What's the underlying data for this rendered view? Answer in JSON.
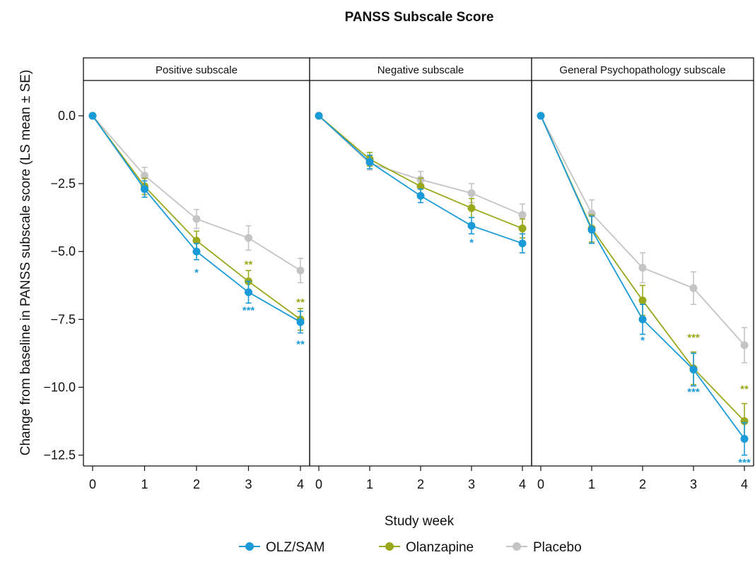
{
  "chart_data": {
    "type": "line",
    "title": "PANSS Subscale Score",
    "xlabel": "Study week",
    "ylabel": "Change from baseline in PANSS subscale score (LS mean ±  SE)",
    "x": [
      0,
      1,
      2,
      3,
      4
    ],
    "x_tick_labels": [
      "0",
      "1",
      "2",
      "3",
      "4"
    ],
    "ylim": [
      -12.9,
      1.3
    ],
    "y_ticks": [
      0,
      -2.5,
      -5,
      -7.5,
      -10,
      -12.5
    ],
    "y_tick_labels": [
      "0.0",
      "−2.5",
      "−5.0",
      "−7.5",
      "−10.0",
      "−12.5"
    ],
    "legend": {
      "position": "bottom"
    },
    "grid": false,
    "colors": {
      "OLZ/SAM": "#1a9bd7",
      "Olanzapine": "#9aa81c",
      "Placebo": "#c4c4c4"
    },
    "panels": [
      {
        "name": "Positive subscale",
        "series": [
          {
            "name": "OLZ/SAM",
            "values": [
              0,
              -2.7,
              -5.0,
              -6.5,
              -7.6
            ],
            "se": [
              0,
              0.3,
              0.3,
              0.4,
              0.4
            ]
          },
          {
            "name": "Olanzapine",
            "values": [
              0,
              -2.6,
              -4.6,
              -6.1,
              -7.5
            ],
            "se": [
              0,
              0.3,
              0.35,
              0.4,
              0.4
            ]
          },
          {
            "name": "Placebo",
            "values": [
              0,
              -2.2,
              -3.8,
              -4.5,
              -5.7
            ],
            "se": [
              0,
              0.3,
              0.35,
              0.45,
              0.45
            ]
          }
        ],
        "significance": [
          {
            "series": "OLZ/SAM",
            "x": 2,
            "y": -5.9,
            "label": "*"
          },
          {
            "series": "Olanzapine",
            "x": 3,
            "y": -5.6,
            "label": "**"
          },
          {
            "series": "OLZ/SAM",
            "x": 3,
            "y": -7.3,
            "label": "***"
          },
          {
            "series": "Olanzapine",
            "x": 4,
            "y": -7.0,
            "label": "**"
          },
          {
            "series": "OLZ/SAM",
            "x": 4,
            "y": -8.55,
            "label": "**"
          }
        ]
      },
      {
        "name": "Negative subscale",
        "series": [
          {
            "name": "OLZ/SAM",
            "values": [
              0,
              -1.7,
              -2.95,
              -4.05,
              -4.7
            ],
            "se": [
              0,
              0.25,
              0.25,
              0.3,
              0.35
            ]
          },
          {
            "name": "Olanzapine",
            "values": [
              0,
              -1.6,
              -2.6,
              -3.4,
              -4.15
            ],
            "se": [
              0,
              0.25,
              0.3,
              0.35,
              0.35
            ]
          },
          {
            "name": "Placebo",
            "values": [
              0,
              -1.75,
              -2.35,
              -2.85,
              -3.65
            ],
            "se": [
              0,
              0.25,
              0.3,
              0.35,
              0.4
            ]
          }
        ],
        "significance": [
          {
            "series": "OLZ/SAM",
            "x": 3,
            "y": -4.8,
            "label": "*"
          }
        ]
      },
      {
        "name": "General Psychopathology subscale",
        "series": [
          {
            "name": "OLZ/SAM",
            "values": [
              0,
              -4.2,
              -7.5,
              -9.35,
              -11.9
            ],
            "se": [
              0,
              0.5,
              0.55,
              0.6,
              0.6
            ]
          },
          {
            "name": "Olanzapine",
            "values": [
              0,
              -4.15,
              -6.8,
              -9.3,
              -11.25
            ],
            "se": [
              0,
              0.5,
              0.55,
              0.6,
              0.65
            ]
          },
          {
            "name": "Placebo",
            "values": [
              0,
              -3.6,
              -5.6,
              -6.35,
              -8.45
            ],
            "se": [
              0,
              0.5,
              0.55,
              0.6,
              0.65
            ]
          }
        ],
        "significance": [
          {
            "series": "OLZ/SAM",
            "x": 2,
            "y": -8.4,
            "label": "*"
          },
          {
            "series": "Olanzapine",
            "x": 3,
            "y": -8.3,
            "label": "***"
          },
          {
            "series": "OLZ/SAM",
            "x": 3,
            "y": -10.3,
            "label": "***"
          },
          {
            "series": "Olanzapine",
            "x": 4,
            "y": -10.2,
            "label": "**"
          },
          {
            "series": "OLZ/SAM",
            "x": 4,
            "y": -12.9,
            "label": "***"
          }
        ]
      }
    ]
  }
}
